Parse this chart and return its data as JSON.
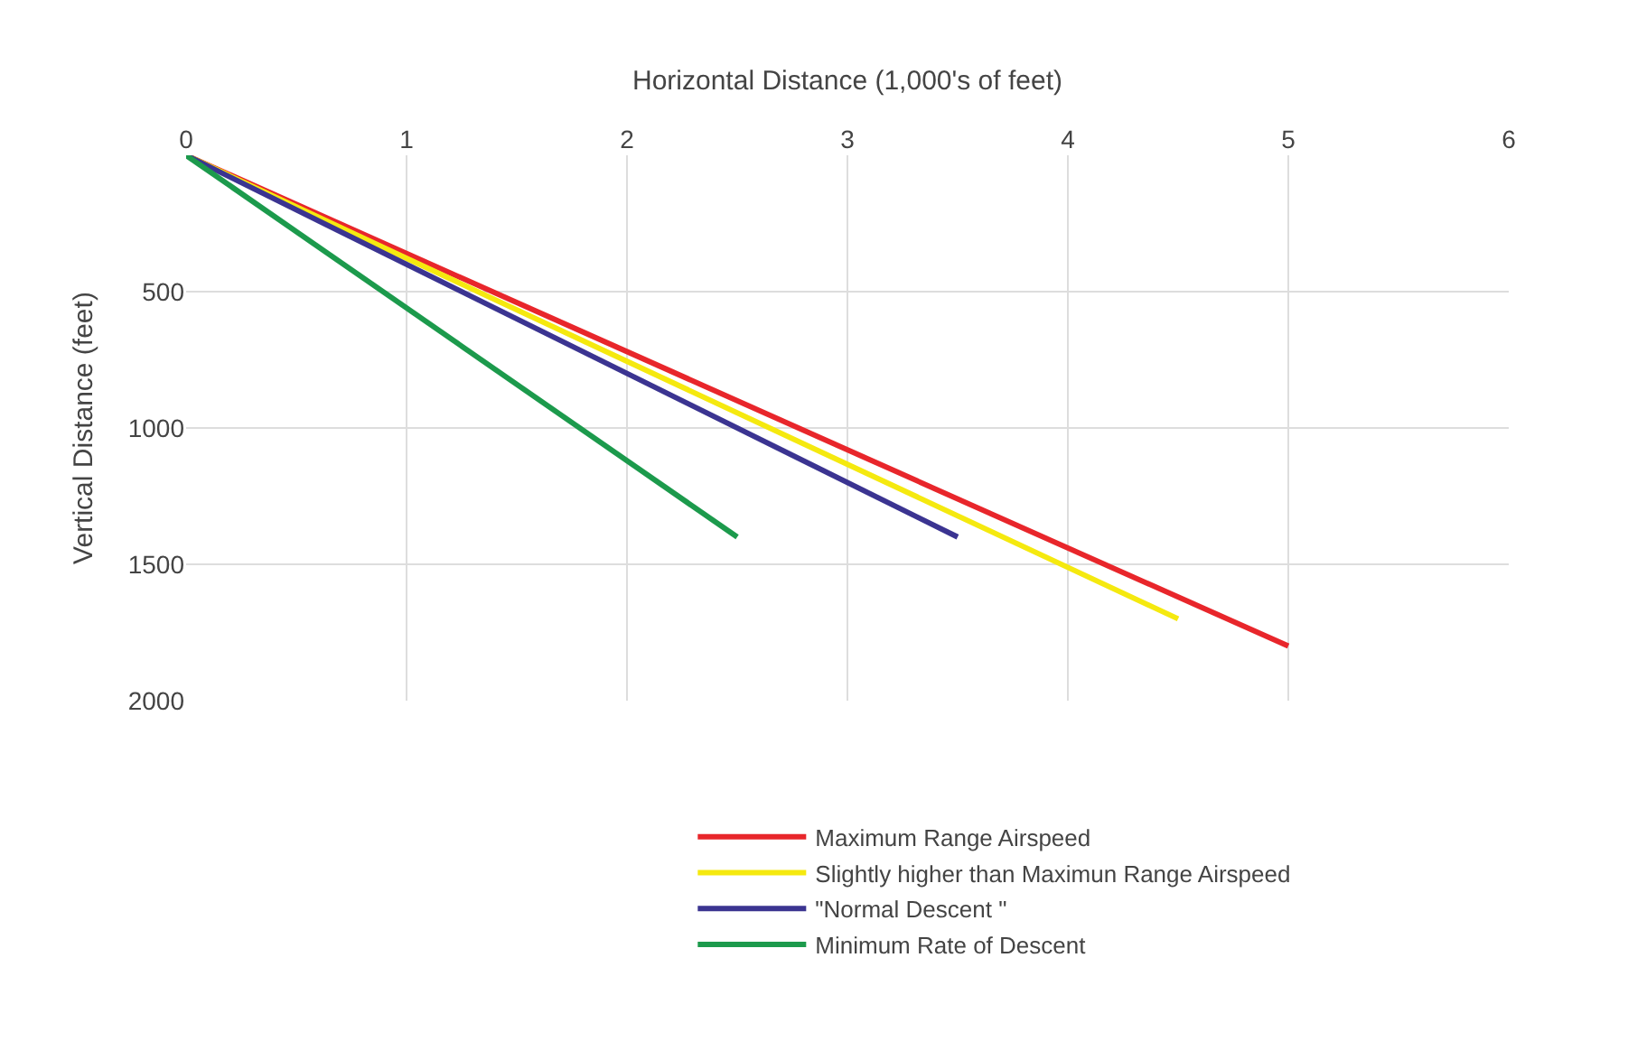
{
  "chart_data": {
    "type": "line",
    "xlabel": "Horizontal Distance (1,000's of feet)",
    "ylabel": "Vertical Distance (feet)",
    "xlim": [
      0,
      6
    ],
    "xticks": [
      0,
      1,
      2,
      3,
      4,
      5,
      6
    ],
    "ylim": [
      2000,
      0
    ],
    "yticks": [
      500,
      1000,
      1500,
      2000
    ],
    "grid": true,
    "legend": "bottom",
    "marker": "none",
    "line_style": "solid",
    "series": [
      {
        "name": "Maximum Range Airspeed",
        "color": "#e8262b",
        "x": [
          0,
          5
        ],
        "values": [
          0,
          1800
        ]
      },
      {
        "name": "Slightly higher than Maximun Range Airspeed",
        "color": "#f5e90f",
        "x": [
          0,
          4.5
        ],
        "values": [
          0,
          1700
        ]
      },
      {
        "name": "\"Normal Descent \"",
        "color": "#3b3491",
        "x": [
          0,
          3.5
        ],
        "values": [
          0,
          1400
        ]
      },
      {
        "name": "Minimum Rate of Descent",
        "color": "#1c9a4c",
        "x": [
          0,
          2.5
        ],
        "values": [
          0,
          1400
        ]
      }
    ]
  }
}
